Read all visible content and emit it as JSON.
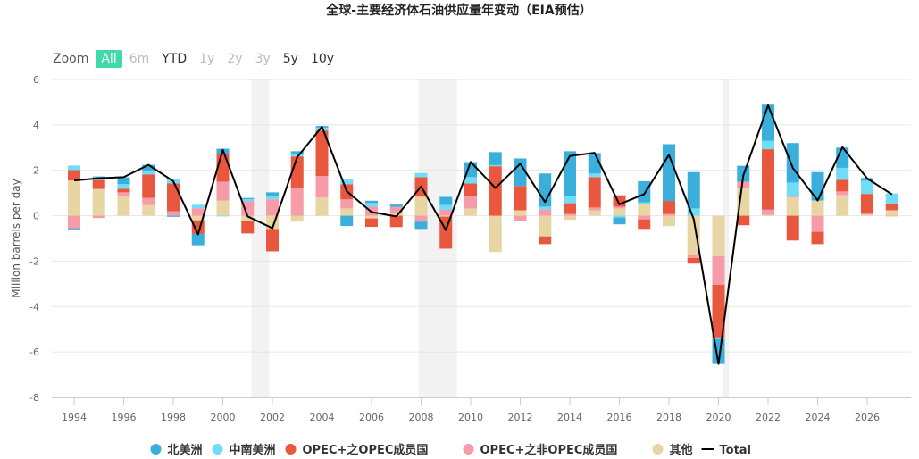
{
  "chart_data": {
    "type": "bar",
    "stacked": true,
    "title": "全球-主要经济体石油供应量年变动（EIA预估）",
    "ylabel": "Million barrels per day",
    "xlabel": "",
    "ylim": [
      -8,
      6
    ],
    "yticks": [
      -8,
      -6,
      -4,
      -2,
      0,
      2,
      4,
      6
    ],
    "xticks": [
      1994,
      1996,
      1998,
      2000,
      2002,
      2004,
      2006,
      2008,
      2010,
      2012,
      2014,
      2016,
      2018,
      2020,
      2022,
      2024,
      2026
    ],
    "grid": true,
    "legend_position": "bottom",
    "shaded_periods": [
      [
        2001.15,
        2001.87
      ],
      [
        2007.9,
        2009.45
      ],
      [
        2020.2,
        2020.42
      ]
    ],
    "categories": [
      1994,
      1995,
      1996,
      1997,
      1998,
      1999,
      2000,
      2001,
      2002,
      2003,
      2004,
      2005,
      2006,
      2007,
      2008,
      2009,
      2010,
      2011,
      2012,
      2013,
      2014,
      2015,
      2016,
      2017,
      2018,
      2019,
      2020,
      2021,
      2022,
      2023,
      2024,
      2025,
      2026,
      2027
    ],
    "series": [
      {
        "name": "其他",
        "color": "#e8d5a4",
        "values": [
          1.55,
          1.18,
          0.87,
          0.47,
          0,
          -0.2,
          0.67,
          -0.24,
          -0.58,
          -0.26,
          0.8,
          0.32,
          -0.12,
          0.1,
          0.84,
          -0.04,
          0.32,
          -1.6,
          0.24,
          -0.91,
          -0.18,
          0.24,
          0.32,
          0.51,
          -0.46,
          -1.74,
          -1.78,
          1.22,
          0.03,
          0.8,
          0.67,
          0.91,
          0.05,
          0.24
        ]
      },
      {
        "name": "OPEC+之非OPEC成员国",
        "color": "#f89ba9",
        "values": [
          -0.55,
          -0.1,
          0.16,
          0.32,
          0.2,
          0.33,
          0.83,
          0.64,
          0.72,
          1.22,
          0.95,
          0.4,
          0.4,
          0.29,
          -0.26,
          0.26,
          0.55,
          0,
          -0.22,
          0.28,
          0.08,
          0.12,
          0.08,
          -0.16,
          0.08,
          -0.12,
          -1.26,
          0.28,
          0.24,
          0.04,
          -0.71,
          0.16,
          0.04,
          -0.03
        ]
      },
      {
        "name": "OPEC+之OPEC成员国",
        "color": "#e8573e",
        "values": [
          0.46,
          0.4,
          0.16,
          1.03,
          1.22,
          -0.6,
          1.21,
          -0.54,
          -0.99,
          1.39,
          2.0,
          0.67,
          -0.37,
          -0.5,
          0.86,
          -1.41,
          0.55,
          2.18,
          1.07,
          -0.34,
          0.47,
          1.34,
          0.5,
          -0.42,
          0.57,
          -0.25,
          -2.32,
          -0.42,
          2.66,
          -1.09,
          -0.54,
          0.51,
          0.87,
          0.29
        ]
      },
      {
        "name": "中南美洲",
        "color": "#70dcf5",
        "values": [
          0.2,
          0.1,
          0.2,
          0.17,
          0.18,
          0.15,
          -0.03,
          0.09,
          0.15,
          0.1,
          0.13,
          0.2,
          0.16,
          0,
          0.18,
          0.21,
          0.28,
          0.05,
          0,
          0.12,
          0.32,
          0.16,
          -0.08,
          0.08,
          0,
          0.32,
          -0.07,
          0,
          0.37,
          0.62,
          0,
          0.53,
          0.58,
          0.45
        ]
      },
      {
        "name": "北美洲",
        "color": "#3aafdc",
        "values": [
          -0.05,
          0.05,
          0.3,
          0.25,
          -0.05,
          -0.5,
          0.24,
          0.05,
          0.16,
          0.13,
          0.07,
          -0.45,
          0.1,
          0.1,
          -0.32,
          0.36,
          0.66,
          0.57,
          1.21,
          1.46,
          1.97,
          0.9,
          -0.3,
          0.93,
          2.5,
          1.6,
          -1.1,
          0.7,
          1.59,
          1.74,
          1.25,
          0.89,
          0.12,
          0
        ]
      }
    ],
    "line": {
      "name": "Total",
      "color": "#000000",
      "values": [
        1.55,
        1.65,
        1.7,
        2.24,
        1.52,
        -0.82,
        2.9,
        -0.03,
        -0.55,
        2.58,
        3.92,
        1.08,
        0.16,
        -0.03,
        1.29,
        -0.63,
        2.37,
        1.22,
        2.29,
        0.6,
        2.63,
        2.77,
        0.5,
        0.95,
        2.68,
        -0.15,
        -6.53,
        1.77,
        4.86,
        2.1,
        0.67,
        3.02,
        1.64,
        0.94
      ]
    }
  },
  "zoom": {
    "label": "Zoom",
    "buttons": [
      {
        "label": "All",
        "state": "selected"
      },
      {
        "label": "6m",
        "state": "disabled"
      },
      {
        "label": "YTD",
        "state": "enabled"
      },
      {
        "label": "1y",
        "state": "disabled"
      },
      {
        "label": "2y",
        "state": "disabled"
      },
      {
        "label": "3y",
        "state": "disabled"
      },
      {
        "label": "5y",
        "state": "enabled"
      },
      {
        "label": "10y",
        "state": "enabled"
      }
    ]
  },
  "legend_order": [
    4,
    3,
    2,
    1,
    0
  ]
}
